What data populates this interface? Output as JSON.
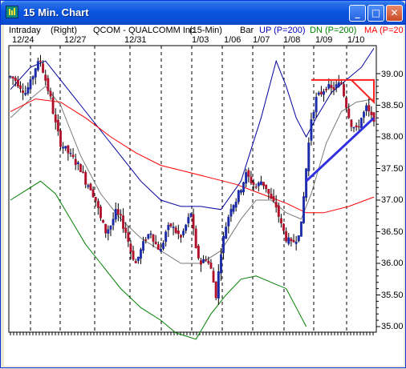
{
  "window": {
    "title": "15 Min. Chart",
    "minimize_label": "_",
    "maximize_label": "□",
    "close_label": "✕"
  },
  "icons": {
    "app": "chart-app-icon"
  },
  "colors": {
    "candle_up": "#1a2aa8",
    "candle_down": "#b0102a",
    "ma": "#ff0000",
    "band_upper": "#0000a0",
    "band_lower": "#008000",
    "band_mid": "#7a7a7a",
    "trend_line": "#3030e0",
    "triangle": "#ff1f1f"
  },
  "chart_header": {
    "interval": "Intraday",
    "axis_side": "(Right)",
    "symbol": "QCOM - QUALCOMM Inc",
    "timeframe": "(15-Min)",
    "type": "Bar",
    "up_label": "UP (P=200)",
    "dn_label": "DN (P=200)",
    "ma_label": "MA (P=20"
  },
  "chart_data": {
    "type": "candlestick",
    "title": "QCOM - QUALCOMM Inc (15-Min)",
    "x_dates": [
      "12/24",
      "12/27",
      "12/31",
      "1/03",
      "1/06",
      "1/07",
      "1/08",
      "1/09",
      "1/10"
    ],
    "y_ticks": [
      "39.00",
      "38.50",
      "38.00",
      "37.50",
      "37.00",
      "36.50",
      "36.00",
      "35.50",
      "35.00"
    ],
    "ylim": [
      35.0,
      39.0
    ],
    "close_path": [
      [
        0,
        38.95
      ],
      [
        2,
        38.9
      ],
      [
        4,
        38.8
      ],
      [
        6,
        38.7
      ],
      [
        8,
        38.85
      ],
      [
        10,
        39.1
      ],
      [
        12,
        39.2
      ],
      [
        14,
        38.9
      ],
      [
        16,
        38.6
      ],
      [
        18,
        38.2
      ],
      [
        20,
        37.9
      ],
      [
        22,
        37.8
      ],
      [
        24,
        37.7
      ],
      [
        26,
        37.6
      ],
      [
        28,
        37.5
      ],
      [
        30,
        37.3
      ],
      [
        32,
        37.2
      ],
      [
        34,
        37.0
      ],
      [
        36,
        36.7
      ],
      [
        38,
        36.5
      ],
      [
        40,
        36.6
      ],
      [
        42,
        36.8
      ],
      [
        44,
        36.7
      ],
      [
        46,
        36.5
      ],
      [
        48,
        36.2
      ],
      [
        50,
        36.0
      ],
      [
        52,
        36.2
      ],
      [
        54,
        36.4
      ],
      [
        56,
        36.5
      ],
      [
        58,
        36.3
      ],
      [
        60,
        36.2
      ],
      [
        62,
        36.5
      ],
      [
        64,
        36.6
      ],
      [
        66,
        36.5
      ],
      [
        68,
        36.4
      ],
      [
        70,
        36.6
      ],
      [
        72,
        36.8
      ],
      [
        74,
        36.2
      ],
      [
        76,
        36.0
      ],
      [
        78,
        36.1
      ],
      [
        80,
        35.9
      ],
      [
        82,
        35.5
      ],
      [
        84,
        36.2
      ],
      [
        86,
        36.6
      ],
      [
        88,
        36.9
      ],
      [
        90,
        37.0
      ],
      [
        92,
        37.2
      ],
      [
        94,
        37.4
      ],
      [
        96,
        37.3
      ],
      [
        98,
        37.2
      ],
      [
        100,
        37.3
      ],
      [
        102,
        37.2
      ],
      [
        104,
        37.0
      ],
      [
        106,
        36.9
      ],
      [
        108,
        36.6
      ],
      [
        110,
        36.4
      ],
      [
        112,
        36.3
      ],
      [
        114,
        36.4
      ],
      [
        116,
        36.6
      ],
      [
        118,
        37.5
      ],
      [
        120,
        38.3
      ],
      [
        122,
        38.6
      ],
      [
        124,
        38.7
      ],
      [
        126,
        38.8
      ],
      [
        128,
        38.75
      ],
      [
        130,
        38.8
      ],
      [
        132,
        38.85
      ],
      [
        134,
        38.5
      ],
      [
        136,
        38.2
      ],
      [
        138,
        38.1
      ],
      [
        140,
        38.3
      ],
      [
        142,
        38.45
      ],
      [
        144,
        38.3
      ]
    ],
    "ma_path": [
      [
        0,
        38.4
      ],
      [
        10,
        38.6
      ],
      [
        20,
        38.55
      ],
      [
        30,
        38.3
      ],
      [
        40,
        38.0
      ],
      [
        50,
        37.75
      ],
      [
        60,
        37.55
      ],
      [
        70,
        37.45
      ],
      [
        80,
        37.35
      ],
      [
        90,
        37.25
      ],
      [
        100,
        37.1
      ],
      [
        110,
        36.95
      ],
      [
        118,
        36.8
      ],
      [
        125,
        36.8
      ],
      [
        135,
        36.9
      ],
      [
        145,
        37.05
      ]
    ],
    "upper_band": [
      [
        0,
        38.75
      ],
      [
        8,
        39.1
      ],
      [
        14,
        39.2
      ],
      [
        20,
        38.9
      ],
      [
        28,
        38.5
      ],
      [
        36,
        38.1
      ],
      [
        44,
        37.7
      ],
      [
        52,
        37.3
      ],
      [
        60,
        37.0
      ],
      [
        68,
        36.9
      ],
      [
        76,
        36.9
      ],
      [
        84,
        36.85
      ],
      [
        92,
        37.3
      ],
      [
        100,
        38.3
      ],
      [
        106,
        39.2
      ],
      [
        110,
        38.8
      ],
      [
        114,
        38.3
      ],
      [
        118,
        38.0
      ],
      [
        122,
        38.3
      ],
      [
        128,
        38.7
      ],
      [
        134,
        38.9
      ],
      [
        140,
        39.1
      ],
      [
        145,
        39.4
      ]
    ],
    "lower_band": [
      [
        0,
        37.0
      ],
      [
        6,
        37.15
      ],
      [
        12,
        37.3
      ],
      [
        18,
        37.1
      ],
      [
        24,
        36.7
      ],
      [
        30,
        36.3
      ],
      [
        36,
        36.0
      ],
      [
        44,
        35.6
      ],
      [
        52,
        35.3
      ],
      [
        60,
        35.1
      ],
      [
        66,
        34.9
      ],
      [
        74,
        34.8
      ],
      [
        80,
        35.2
      ],
      [
        86,
        35.5
      ],
      [
        92,
        35.75
      ],
      [
        98,
        35.8
      ],
      [
        104,
        35.7
      ],
      [
        110,
        35.6
      ],
      [
        114,
        35.3
      ],
      [
        118,
        35.0
      ]
    ],
    "mid_band": [
      [
        0,
        38.3
      ],
      [
        8,
        38.6
      ],
      [
        14,
        38.8
      ],
      [
        20,
        38.5
      ],
      [
        28,
        37.7
      ],
      [
        36,
        37.1
      ],
      [
        44,
        36.7
      ],
      [
        52,
        36.4
      ],
      [
        60,
        36.2
      ],
      [
        68,
        36.0
      ],
      [
        76,
        36.0
      ],
      [
        84,
        36.2
      ],
      [
        92,
        36.7
      ],
      [
        98,
        37.0
      ],
      [
        104,
        37.0
      ],
      [
        110,
        36.8
      ],
      [
        116,
        36.7
      ],
      [
        120,
        37.1
      ],
      [
        126,
        37.9
      ],
      [
        132,
        38.4
      ],
      [
        138,
        38.55
      ],
      [
        145,
        38.6
      ]
    ],
    "trend_line": [
      [
        118,
        37.3
      ],
      [
        145,
        38.3
      ]
    ],
    "triangle": [
      [
        120,
        38.9
      ],
      [
        145,
        38.9
      ],
      [
        145,
        38.55
      ],
      [
        136,
        38.9
      ]
    ],
    "grid": true,
    "legend": "top"
  }
}
